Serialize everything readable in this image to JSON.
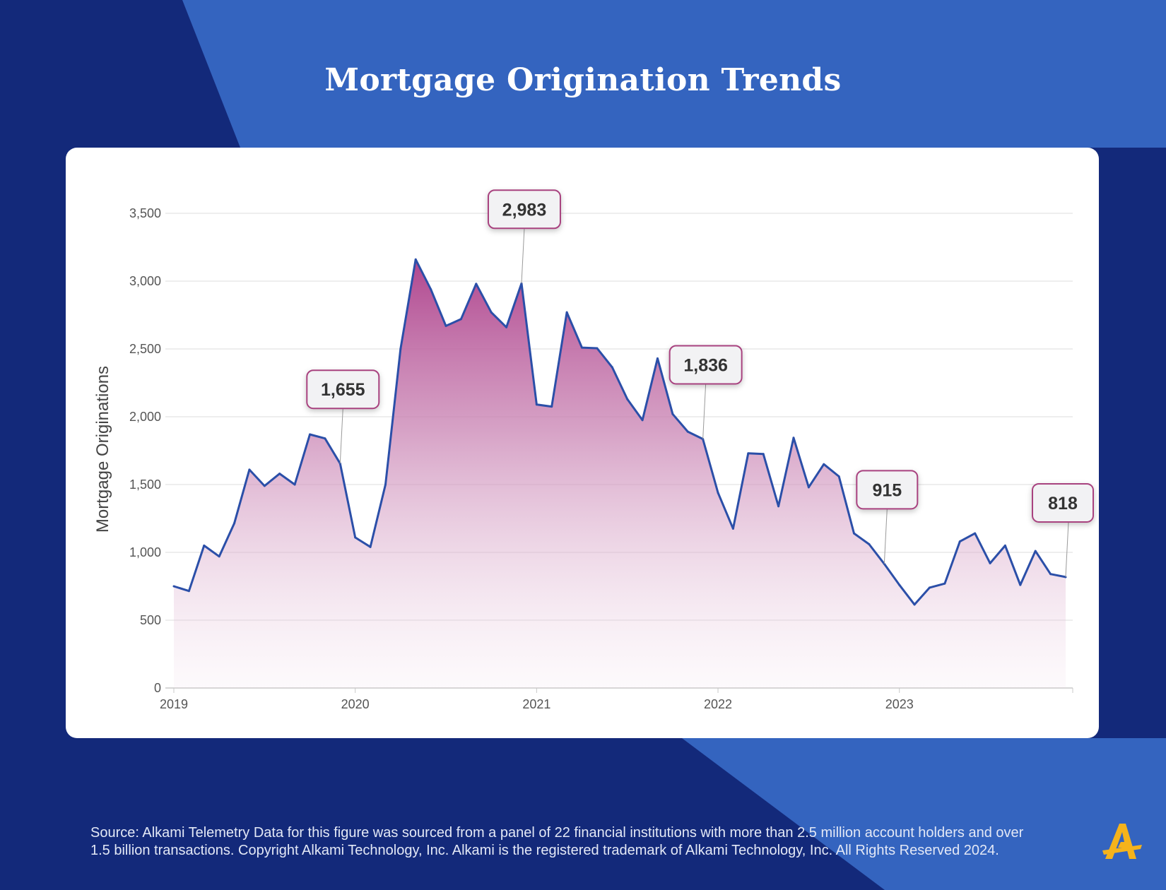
{
  "page": {
    "title": "Mortgage Origination Trends",
    "source_lines": [
      "Source:  Alkami Telemetry Data for this figure was sourced from a panel of 22 financial institutions with more than 2.5 million account holders and over",
      "1.5 billion transactions. Copyright Alkami Technology, Inc. Alkami is the registered trademark of Alkami Technology, Inc. All Rights Reserved 2024."
    ],
    "logo_icon": "alkami-a-logo-icon"
  },
  "colors": {
    "background_dark": "#13297a",
    "background_light": "#3464bf",
    "line": "#2b4fa8",
    "area_top": "#b0478f",
    "callout_border": "#a8427f",
    "callout_fill": "#f2f2f4",
    "logo": "#f5b31b"
  },
  "chart_data": {
    "type": "area",
    "title": "Mortgage Origination Trends",
    "ylabel": "Mortgage Originations",
    "xlabel": "",
    "ylim": [
      0,
      3500
    ],
    "yticks": [
      0,
      500,
      1000,
      1500,
      2000,
      2500,
      3000,
      3500
    ],
    "ytick_labels": [
      "0",
      "500",
      "1,000",
      "1,500",
      "2,000",
      "2,500",
      "3,000",
      "3,500"
    ],
    "xlim": [
      "2019-01",
      "2023-12"
    ],
    "xtick_labels": [
      "2019",
      "2020",
      "2021",
      "2022",
      "2023"
    ],
    "grid": true,
    "legend": "none",
    "x": [
      "2019-01",
      "2019-02",
      "2019-03",
      "2019-04",
      "2019-05",
      "2019-06",
      "2019-07",
      "2019-08",
      "2019-09",
      "2019-10",
      "2019-11",
      "2019-12",
      "2020-01",
      "2020-02",
      "2020-03",
      "2020-04",
      "2020-05",
      "2020-06",
      "2020-07",
      "2020-08",
      "2020-09",
      "2020-10",
      "2020-11",
      "2020-12",
      "2021-01",
      "2021-02",
      "2021-03",
      "2021-04",
      "2021-05",
      "2021-06",
      "2021-07",
      "2021-08",
      "2021-09",
      "2021-10",
      "2021-11",
      "2021-12",
      "2022-01",
      "2022-02",
      "2022-03",
      "2022-04",
      "2022-05",
      "2022-06",
      "2022-07",
      "2022-08",
      "2022-09",
      "2022-10",
      "2022-11",
      "2022-12",
      "2023-01",
      "2023-02",
      "2023-03",
      "2023-04",
      "2023-05",
      "2023-06",
      "2023-07",
      "2023-08",
      "2023-09",
      "2023-10",
      "2023-11",
      "2023-12"
    ],
    "series": [
      {
        "name": "",
        "values": [
          750,
          715,
          1050,
          970,
          1215,
          1610,
          1490,
          1580,
          1500,
          1870,
          1840,
          1655,
          1110,
          1040,
          1500,
          2500,
          3160,
          2940,
          2670,
          2720,
          2980,
          2770,
          2660,
          2983,
          2090,
          2075,
          2770,
          2510,
          2505,
          2365,
          2130,
          1975,
          2430,
          2020,
          1890,
          1836,
          1440,
          1175,
          1730,
          1725,
          1340,
          1845,
          1480,
          1650,
          1560,
          1140,
          1060,
          915,
          760,
          615,
          740,
          770,
          1080,
          1140,
          920,
          1050,
          760,
          1010,
          840,
          818
        ]
      }
    ],
    "annotations": [
      {
        "x": "2019-12",
        "value": 1655,
        "label": "1,655"
      },
      {
        "x": "2020-12",
        "value": 2983,
        "label": "2,983"
      },
      {
        "x": "2021-12",
        "value": 1836,
        "label": "1,836"
      },
      {
        "x": "2022-12",
        "value": 915,
        "label": "915"
      },
      {
        "x": "2023-12",
        "value": 818,
        "label": "818"
      }
    ]
  }
}
